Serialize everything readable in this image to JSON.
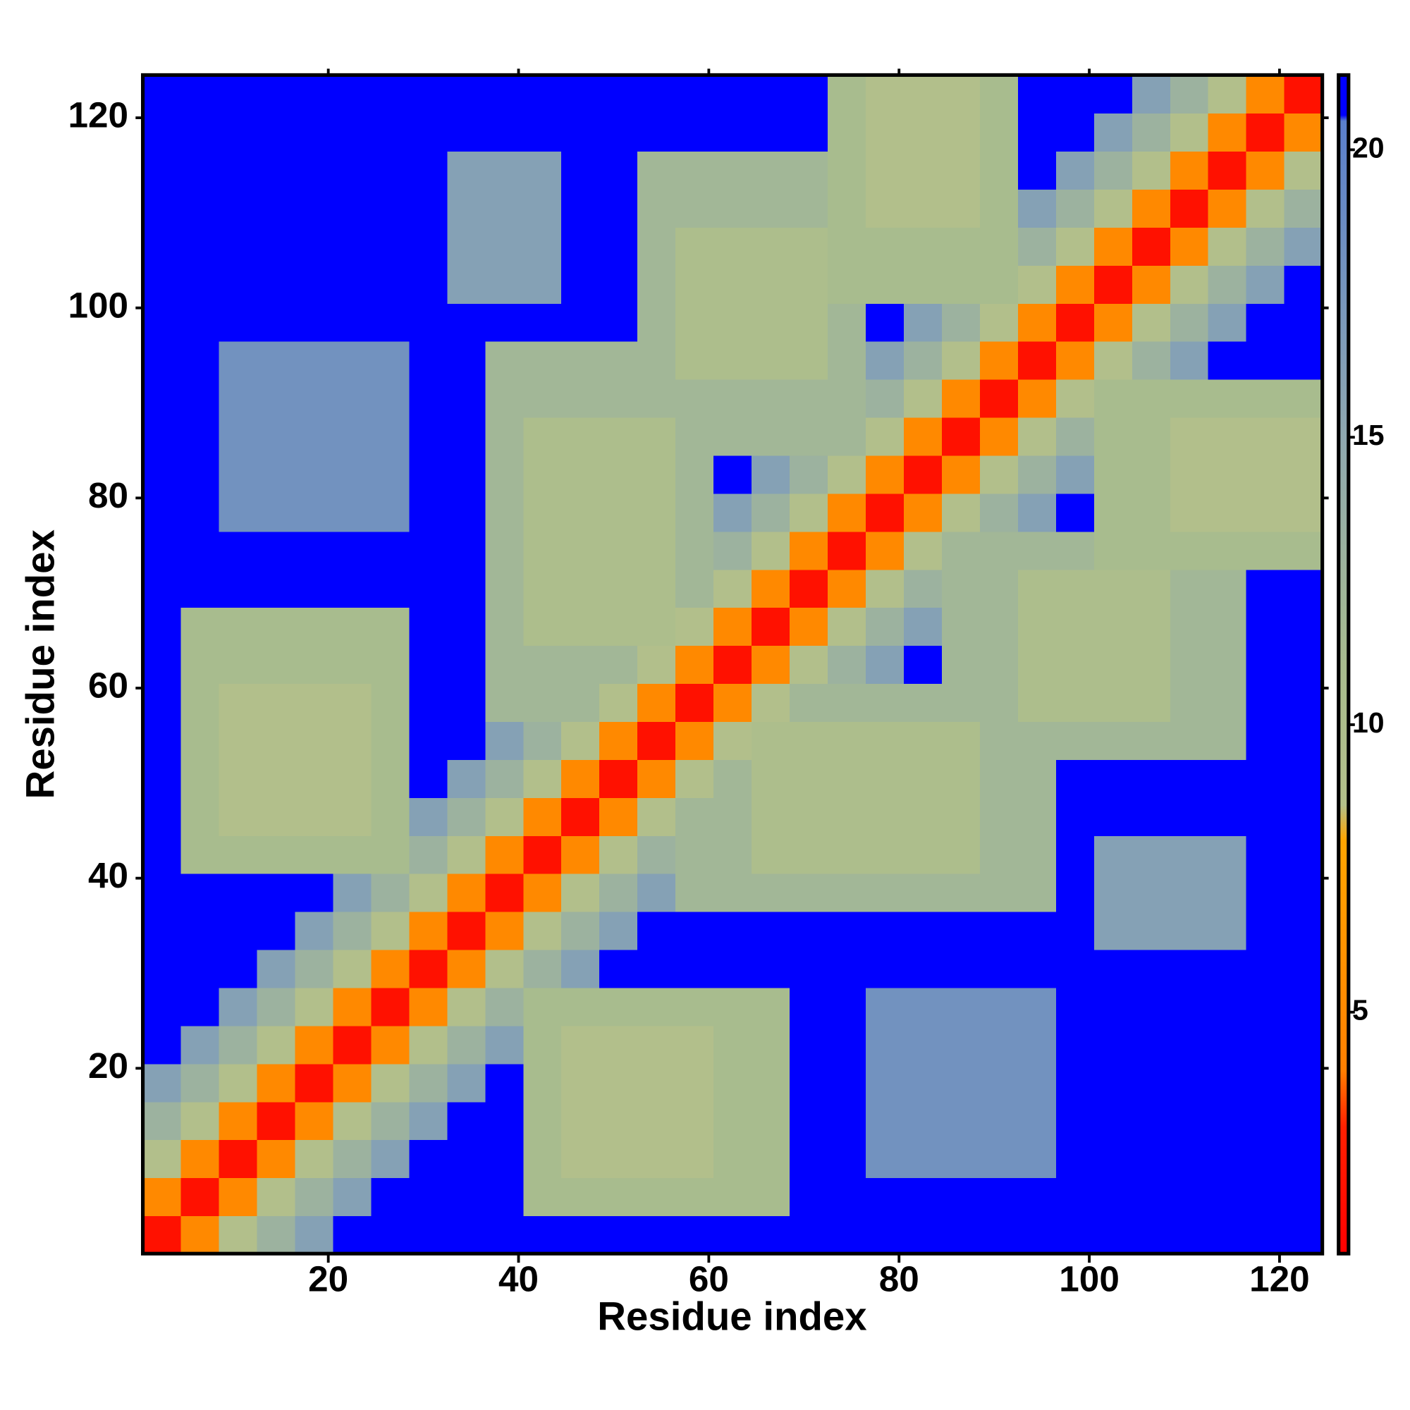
{
  "chart_data": {
    "type": "heatmap",
    "x_label": "Residue index",
    "y_label": "Residue index",
    "xlim": [
      0.5,
      124.5
    ],
    "ylim": [
      0.5,
      124.5
    ],
    "xticks": [
      20,
      40,
      60,
      80,
      100,
      120
    ],
    "yticks": [
      20,
      40,
      60,
      80,
      100,
      120
    ],
    "xbins": [
      0.5,
      4.5,
      8.5,
      12.5,
      16.5,
      20.5,
      24.5,
      28.5,
      32.5,
      36.5,
      40.5,
      44.5,
      48.5,
      52.5,
      56.5,
      60.5,
      64.5,
      68.5,
      72.5,
      76.5,
      80.5,
      84.5,
      88.5,
      92.5,
      96.5,
      100.5,
      104.5,
      108.5,
      112.5,
      116.5,
      120.5,
      124.5
    ],
    "ybins": [
      0.5,
      4.5,
      8.5,
      12.5,
      16.5,
      20.5,
      24.5,
      28.5,
      32.5,
      36.5,
      40.5,
      44.5,
      48.5,
      52.5,
      56.5,
      60.5,
      64.5,
      68.5,
      72.5,
      76.5,
      80.5,
      84.5,
      88.5,
      92.5,
      96.5,
      100.5,
      104.5,
      108.5,
      112.5,
      116.5,
      120.5,
      124.5
    ],
    "clim": [
      0.8,
      21.3
    ],
    "cticks": [
      5,
      10,
      15,
      20
    ],
    "colorscale": [
      {
        "value": 0.8,
        "color": "#ff0000"
      },
      {
        "value": 3,
        "color": "#ff2000"
      },
      {
        "value": 4,
        "color": "#ff8000"
      },
      {
        "value": 8,
        "color": "#ffa500"
      },
      {
        "value": 8.6,
        "color": "#b4c08a"
      },
      {
        "value": 11,
        "color": "#a8bc8e"
      },
      {
        "value": 15,
        "color": "#8fa8b0"
      },
      {
        "value": 20.5,
        "color": "#5a7fcc"
      },
      {
        "value": 20.6,
        "color": "#0000ff"
      },
      {
        "value": 21.3,
        "color": "#0000ff"
      }
    ],
    "z": [
      [
        2,
        5,
        9,
        13,
        16,
        21,
        21,
        21,
        21,
        21,
        21,
        21,
        21,
        21,
        21,
        21,
        21,
        21,
        21,
        21,
        21,
        21,
        21,
        21,
        21,
        21,
        21,
        21,
        21,
        21,
        21
      ],
      [
        5,
        2,
        5,
        9,
        13,
        16,
        21,
        21,
        21,
        21,
        11,
        11,
        11,
        11,
        11,
        11,
        11,
        21,
        21,
        21,
        21,
        21,
        21,
        21,
        21,
        21,
        21,
        21,
        21,
        21,
        21
      ],
      [
        9,
        5,
        2,
        5,
        9,
        13,
        16,
        21,
        21,
        21,
        11,
        9,
        9,
        9,
        9,
        11,
        11,
        21,
        21,
        18,
        18,
        18,
        18,
        18,
        21,
        21,
        21,
        21,
        21,
        21,
        21
      ],
      [
        13,
        9,
        5,
        2,
        5,
        9,
        13,
        16,
        21,
        21,
        11,
        9,
        9,
        9,
        9,
        11,
        11,
        21,
        21,
        18,
        18,
        18,
        18,
        18,
        21,
        21,
        21,
        21,
        21,
        21,
        21
      ],
      [
        16,
        13,
        9,
        5,
        2,
        5,
        9,
        13,
        16,
        21,
        11,
        9,
        9,
        9,
        9,
        11,
        11,
        21,
        21,
        18,
        18,
        18,
        18,
        18,
        21,
        21,
        21,
        21,
        21,
        21,
        21
      ],
      [
        21,
        16,
        13,
        9,
        5,
        2,
        5,
        9,
        13,
        16,
        11,
        9,
        9,
        9,
        9,
        11,
        11,
        21,
        21,
        18,
        18,
        18,
        18,
        18,
        21,
        21,
        21,
        21,
        21,
        21,
        21
      ],
      [
        21,
        21,
        16,
        13,
        9,
        5,
        2,
        5,
        9,
        13,
        11,
        11,
        11,
        11,
        11,
        11,
        11,
        21,
        21,
        18,
        18,
        18,
        18,
        18,
        21,
        21,
        21,
        21,
        21,
        21,
        21
      ],
      [
        21,
        21,
        21,
        16,
        13,
        9,
        5,
        2,
        5,
        9,
        13,
        16,
        21,
        21,
        21,
        21,
        21,
        21,
        21,
        21,
        21,
        21,
        21,
        21,
        21,
        21,
        21,
        21,
        21,
        21,
        21
      ],
      [
        21,
        21,
        21,
        21,
        16,
        13,
        9,
        5,
        2,
        5,
        9,
        13,
        16,
        21,
        21,
        21,
        21,
        21,
        21,
        21,
        21,
        21,
        21,
        21,
        21,
        16,
        16,
        16,
        16,
        21,
        21
      ],
      [
        21,
        21,
        21,
        21,
        21,
        16,
        13,
        9,
        5,
        2,
        5,
        9,
        13,
        16,
        12,
        12,
        12,
        12,
        12,
        12,
        12,
        12,
        12,
        12,
        21,
        16,
        16,
        16,
        16,
        21,
        21
      ],
      [
        21,
        11,
        11,
        11,
        11,
        11,
        11,
        13,
        9,
        5,
        2,
        5,
        9,
        13,
        12,
        12,
        10,
        10,
        10,
        10,
        10,
        10,
        12,
        12,
        21,
        16,
        16,
        16,
        16,
        21,
        21
      ],
      [
        21,
        11,
        9,
        9,
        9,
        9,
        11,
        16,
        13,
        9,
        5,
        2,
        5,
        9,
        12,
        12,
        10,
        10,
        10,
        10,
        10,
        10,
        12,
        12,
        21,
        21,
        21,
        21,
        21,
        21,
        21
      ],
      [
        21,
        11,
        9,
        9,
        9,
        9,
        11,
        21,
        16,
        13,
        9,
        5,
        2,
        5,
        9,
        12,
        10,
        10,
        10,
        10,
        10,
        10,
        12,
        12,
        21,
        21,
        21,
        21,
        21,
        21,
        21
      ],
      [
        21,
        11,
        9,
        9,
        9,
        9,
        11,
        21,
        21,
        16,
        13,
        9,
        5,
        2,
        5,
        9,
        10,
        10,
        10,
        10,
        10,
        10,
        12,
        12,
        12,
        12,
        12,
        12,
        12,
        21,
        21
      ],
      [
        21,
        11,
        9,
        9,
        9,
        9,
        11,
        21,
        21,
        12,
        12,
        12,
        9,
        5,
        2,
        5,
        9,
        12,
        12,
        12,
        12,
        12,
        12,
        10,
        10,
        10,
        10,
        12,
        12,
        21,
        21
      ],
      [
        21,
        11,
        11,
        11,
        11,
        11,
        11,
        21,
        21,
        12,
        12,
        12,
        12,
        9,
        5,
        2,
        5,
        9,
        13,
        16,
        21,
        12,
        12,
        10,
        10,
        10,
        10,
        12,
        12,
        21,
        21
      ],
      [
        21,
        11,
        11,
        11,
        11,
        11,
        11,
        21,
        21,
        12,
        10,
        10,
        10,
        10,
        9,
        5,
        2,
        5,
        9,
        13,
        16,
        12,
        12,
        10,
        10,
        10,
        10,
        12,
        12,
        21,
        21
      ],
      [
        21,
        21,
        21,
        21,
        21,
        21,
        21,
        21,
        21,
        12,
        10,
        10,
        10,
        10,
        12,
        9,
        5,
        2,
        5,
        9,
        13,
        12,
        12,
        10,
        10,
        10,
        10,
        12,
        12,
        21,
        21
      ],
      [
        21,
        21,
        21,
        21,
        21,
        21,
        21,
        21,
        21,
        12,
        10,
        10,
        10,
        10,
        12,
        13,
        9,
        5,
        2,
        5,
        9,
        12,
        12,
        12,
        12,
        11,
        11,
        11,
        11,
        11,
        11
      ],
      [
        21,
        21,
        18,
        18,
        18,
        18,
        18,
        21,
        21,
        12,
        10,
        10,
        10,
        10,
        12,
        16,
        13,
        9,
        5,
        2,
        5,
        9,
        13,
        16,
        21,
        11,
        11,
        9,
        9,
        9,
        9
      ],
      [
        21,
        21,
        18,
        18,
        18,
        18,
        18,
        21,
        21,
        12,
        10,
        10,
        10,
        10,
        12,
        21,
        16,
        13,
        9,
        5,
        2,
        5,
        9,
        13,
        16,
        11,
        11,
        9,
        9,
        9,
        9
      ],
      [
        21,
        21,
        18,
        18,
        18,
        18,
        18,
        21,
        21,
        12,
        10,
        10,
        10,
        10,
        12,
        12,
        12,
        12,
        12,
        9,
        5,
        2,
        5,
        9,
        13,
        11,
        11,
        9,
        9,
        9,
        9
      ],
      [
        21,
        21,
        18,
        18,
        18,
        18,
        18,
        21,
        21,
        12,
        12,
        12,
        12,
        12,
        12,
        12,
        12,
        12,
        12,
        13,
        9,
        5,
        2,
        5,
        9,
        11,
        11,
        11,
        11,
        11,
        11
      ],
      [
        21,
        21,
        18,
        18,
        18,
        18,
        18,
        21,
        21,
        12,
        12,
        12,
        12,
        12,
        10,
        10,
        10,
        10,
        12,
        16,
        13,
        9,
        5,
        2,
        5,
        9,
        13,
        16,
        21,
        21,
        21
      ],
      [
        21,
        21,
        21,
        21,
        21,
        21,
        21,
        21,
        21,
        21,
        21,
        21,
        21,
        12,
        10,
        10,
        10,
        10,
        12,
        21,
        16,
        13,
        9,
        5,
        2,
        5,
        9,
        13,
        16,
        21,
        21
      ],
      [
        21,
        21,
        21,
        21,
        21,
        21,
        21,
        21,
        16,
        16,
        16,
        21,
        21,
        12,
        10,
        10,
        10,
        10,
        11,
        11,
        11,
        11,
        11,
        9,
        5,
        2,
        5,
        9,
        13,
        16,
        21
      ],
      [
        21,
        21,
        21,
        21,
        21,
        21,
        21,
        21,
        16,
        16,
        16,
        21,
        21,
        12,
        10,
        10,
        10,
        10,
        11,
        11,
        11,
        11,
        11,
        13,
        9,
        5,
        2,
        5,
        9,
        13,
        16
      ],
      [
        21,
        21,
        21,
        21,
        21,
        21,
        21,
        21,
        16,
        16,
        16,
        21,
        21,
        12,
        12,
        12,
        12,
        12,
        11,
        9,
        9,
        9,
        11,
        16,
        13,
        9,
        5,
        2,
        5,
        9,
        13
      ],
      [
        21,
        21,
        21,
        21,
        21,
        21,
        21,
        21,
        16,
        16,
        16,
        21,
        21,
        12,
        12,
        12,
        12,
        12,
        11,
        9,
        9,
        9,
        11,
        21,
        16,
        13,
        9,
        5,
        2,
        5,
        9
      ],
      [
        21,
        21,
        21,
        21,
        21,
        21,
        21,
        21,
        21,
        21,
        21,
        21,
        21,
        21,
        21,
        21,
        21,
        21,
        11,
        9,
        9,
        9,
        11,
        21,
        21,
        16,
        13,
        9,
        5,
        2,
        5
      ],
      [
        21,
        21,
        21,
        21,
        21,
        21,
        21,
        21,
        21,
        21,
        21,
        21,
        21,
        21,
        21,
        21,
        21,
        21,
        11,
        9,
        9,
        9,
        11,
        21,
        21,
        21,
        16,
        13,
        9,
        5,
        2
      ]
    ]
  }
}
